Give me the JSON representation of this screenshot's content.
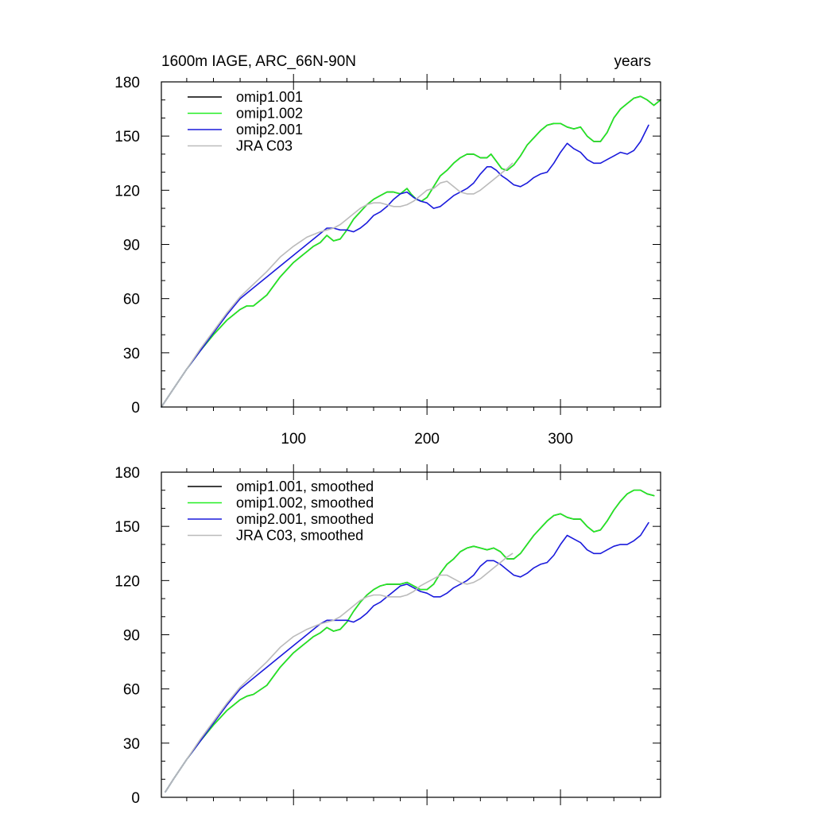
{
  "chart_data": [
    {
      "type": "line",
      "title_left": "1600m IAGE, ARC_66N-90N",
      "title_right": "years",
      "xlabel": "",
      "ylabel": "",
      "xlim": [
        1,
        375
      ],
      "ylim": [
        0,
        180
      ],
      "x_ticks": [
        100,
        200,
        300
      ],
      "x_tick_labels": [
        "100",
        "200",
        "300"
      ],
      "y_ticks": [
        0,
        30,
        60,
        90,
        120,
        150,
        180
      ],
      "y_tick_labels": [
        "0",
        "30",
        "60",
        "90",
        "120",
        "150",
        "180"
      ],
      "grid": false,
      "legend_position": "top-left",
      "series": [
        {
          "name": "omip1.001",
          "color": "#000000",
          "x": [
            1,
            10,
            20,
            30,
            40,
            50,
            60,
            65,
            70,
            80,
            90,
            100,
            110,
            115,
            120,
            125,
            130,
            135,
            140,
            145,
            150,
            155,
            160,
            165,
            170,
            175,
            180,
            185,
            188,
            192,
            196,
            200,
            205,
            210,
            215,
            220,
            225,
            230,
            235,
            240,
            245,
            248,
            252,
            256,
            260,
            265,
            270,
            275,
            280,
            285,
            290,
            295,
            300,
            305,
            310,
            315,
            320,
            325,
            330,
            335,
            340,
            345,
            350,
            355,
            360,
            365,
            370,
            375
          ],
          "values": [
            0,
            10,
            21,
            31,
            40,
            48,
            54,
            56,
            56,
            62,
            72,
            80,
            86,
            89,
            91,
            95,
            92,
            93,
            98,
            104,
            108,
            112,
            115,
            117,
            119,
            119,
            118,
            121,
            118,
            115,
            114,
            116,
            122,
            128,
            131,
            135,
            138,
            140,
            140,
            138,
            138,
            140,
            136,
            132,
            131,
            134,
            139,
            145,
            149,
            153,
            156,
            157,
            157,
            155,
            154,
            155,
            150,
            147,
            147,
            152,
            160,
            165,
            168,
            171,
            172,
            170,
            167,
            170
          ]
        },
        {
          "name": "omip1.002",
          "color": "#22ee22",
          "x": [
            1,
            10,
            20,
            30,
            40,
            50,
            60,
            65,
            70,
            80,
            90,
            100,
            110,
            115,
            120,
            125,
            130,
            135,
            140,
            145,
            150,
            155,
            160,
            165,
            170,
            175,
            180,
            185,
            188,
            192,
            196,
            200,
            205,
            210,
            215,
            220,
            225,
            230,
            235,
            240,
            245,
            248,
            252,
            256,
            260,
            265,
            270,
            275,
            280,
            285,
            290,
            295,
            300,
            305,
            310,
            315,
            320,
            325,
            330,
            335,
            340,
            345,
            350,
            355,
            360,
            365,
            370,
            375
          ],
          "values": [
            0,
            10,
            21,
            31,
            40,
            48,
            54,
            56,
            56,
            62,
            72,
            80,
            86,
            89,
            91,
            95,
            92,
            93,
            98,
            104,
            108,
            112,
            115,
            117,
            119,
            119,
            118,
            121,
            118,
            115,
            114,
            116,
            122,
            128,
            131,
            135,
            138,
            140,
            140,
            138,
            138,
            140,
            136,
            132,
            131,
            134,
            139,
            145,
            149,
            153,
            156,
            157,
            157,
            155,
            154,
            155,
            150,
            147,
            147,
            152,
            160,
            165,
            168,
            171,
            172,
            170,
            167,
            170
          ]
        },
        {
          "name": "omip2.001",
          "color": "#1a1adc",
          "x": [
            1,
            10,
            20,
            30,
            40,
            50,
            60,
            70,
            80,
            90,
            100,
            110,
            120,
            125,
            130,
            135,
            140,
            145,
            150,
            155,
            160,
            165,
            170,
            175,
            180,
            185,
            190,
            195,
            200,
            205,
            210,
            215,
            220,
            225,
            230,
            235,
            240,
            245,
            248,
            252,
            256,
            260,
            265,
            270,
            275,
            280,
            285,
            290,
            295,
            300,
            305,
            310,
            315,
            320,
            325,
            330,
            335,
            340,
            345,
            350,
            355,
            360,
            366
          ],
          "values": [
            0,
            10,
            21,
            31,
            41,
            51,
            60,
            66,
            72,
            78,
            84,
            90,
            96,
            99,
            99,
            98,
            98,
            97,
            99,
            102,
            106,
            108,
            111,
            115,
            118,
            119,
            116,
            114,
            113,
            110,
            111,
            114,
            117,
            119,
            121,
            124,
            129,
            133,
            133,
            131,
            128,
            126,
            123,
            122,
            124,
            127,
            129,
            130,
            135,
            141,
            146,
            143,
            141,
            137,
            135,
            135,
            137,
            139,
            141,
            140,
            142,
            147,
            156
          ]
        },
        {
          "name": "JRA C03",
          "color": "#bbbbbb",
          "x": [
            1,
            10,
            20,
            30,
            40,
            50,
            60,
            70,
            80,
            90,
            100,
            110,
            120,
            125,
            130,
            135,
            140,
            145,
            150,
            155,
            160,
            165,
            170,
            175,
            180,
            185,
            190,
            195,
            200,
            205,
            210,
            215,
            220,
            225,
            230,
            235,
            240,
            245,
            250,
            255,
            260,
            264
          ],
          "values": [
            0,
            10,
            21,
            32,
            42,
            52,
            61,
            68,
            75,
            83,
            89,
            94,
            97,
            98,
            99,
            101,
            104,
            107,
            110,
            112,
            113,
            113,
            112,
            111,
            111,
            112,
            114,
            117,
            120,
            121,
            124,
            125,
            122,
            119,
            118,
            118,
            120,
            123,
            126,
            129,
            132,
            135
          ]
        }
      ]
    },
    {
      "type": "line",
      "title_left": "",
      "title_right": "",
      "xlabel": "",
      "ylabel": "",
      "xlim": [
        1,
        375
      ],
      "ylim": [
        0,
        180
      ],
      "x_ticks": [
        100,
        200,
        300
      ],
      "x_tick_labels": [],
      "y_ticks": [
        0,
        30,
        60,
        90,
        120,
        150,
        180
      ],
      "y_tick_labels": [
        "0",
        "30",
        "60",
        "90",
        "120",
        "150",
        "180"
      ],
      "grid": false,
      "legend_position": "top-left",
      "series": [
        {
          "name": "omip1.001, smoothed",
          "color": "#000000",
          "x": [
            4,
            10,
            20,
            30,
            40,
            50,
            60,
            65,
            70,
            80,
            90,
            100,
            110,
            115,
            120,
            125,
            130,
            135,
            140,
            145,
            150,
            155,
            160,
            165,
            170,
            175,
            180,
            185,
            190,
            195,
            200,
            205,
            210,
            215,
            220,
            225,
            230,
            235,
            240,
            245,
            250,
            255,
            260,
            265,
            270,
            275,
            280,
            285,
            290,
            295,
            300,
            305,
            310,
            315,
            320,
            325,
            330,
            335,
            340,
            345,
            350,
            355,
            360,
            365,
            370
          ],
          "values": [
            3,
            10,
            21,
            31,
            40,
            48,
            54,
            56,
            57,
            62,
            72,
            80,
            86,
            89,
            91,
            94,
            92,
            93,
            97,
            103,
            108,
            112,
            115,
            117,
            118,
            118,
            118,
            119,
            117,
            115,
            115,
            118,
            124,
            129,
            132,
            136,
            138,
            139,
            138,
            137,
            138,
            136,
            132,
            132,
            135,
            140,
            145,
            149,
            153,
            156,
            157,
            155,
            154,
            154,
            150,
            147,
            148,
            153,
            159,
            164,
            168,
            170,
            170,
            168,
            167
          ]
        },
        {
          "name": "omip1.002, smoothed",
          "color": "#22ee22",
          "x": [
            4,
            10,
            20,
            30,
            40,
            50,
            60,
            65,
            70,
            80,
            90,
            100,
            110,
            115,
            120,
            125,
            130,
            135,
            140,
            145,
            150,
            155,
            160,
            165,
            170,
            175,
            180,
            185,
            190,
            195,
            200,
            205,
            210,
            215,
            220,
            225,
            230,
            235,
            240,
            245,
            250,
            255,
            260,
            265,
            270,
            275,
            280,
            285,
            290,
            295,
            300,
            305,
            310,
            315,
            320,
            325,
            330,
            335,
            340,
            345,
            350,
            355,
            360,
            365,
            370
          ],
          "values": [
            3,
            10,
            21,
            31,
            40,
            48,
            54,
            56,
            57,
            62,
            72,
            80,
            86,
            89,
            91,
            94,
            92,
            93,
            97,
            103,
            108,
            112,
            115,
            117,
            118,
            118,
            118,
            119,
            117,
            115,
            115,
            118,
            124,
            129,
            132,
            136,
            138,
            139,
            138,
            137,
            138,
            136,
            132,
            132,
            135,
            140,
            145,
            149,
            153,
            156,
            157,
            155,
            154,
            154,
            150,
            147,
            148,
            153,
            159,
            164,
            168,
            170,
            170,
            168,
            167
          ]
        },
        {
          "name": "omip2.001, smoothed",
          "color": "#1a1adc",
          "x": [
            4,
            10,
            20,
            30,
            40,
            50,
            60,
            70,
            80,
            90,
            100,
            110,
            120,
            125,
            130,
            135,
            140,
            145,
            150,
            155,
            160,
            165,
            170,
            175,
            180,
            185,
            190,
            195,
            200,
            205,
            210,
            215,
            220,
            225,
            230,
            235,
            240,
            245,
            250,
            255,
            260,
            265,
            270,
            275,
            280,
            285,
            290,
            295,
            300,
            305,
            310,
            315,
            320,
            325,
            330,
            335,
            340,
            345,
            350,
            355,
            360,
            366
          ],
          "values": [
            3,
            10,
            21,
            31,
            41,
            51,
            60,
            66,
            72,
            78,
            84,
            90,
            96,
            98,
            98,
            98,
            98,
            97,
            99,
            102,
            106,
            108,
            111,
            114,
            117,
            118,
            116,
            114,
            113,
            111,
            111,
            113,
            116,
            118,
            120,
            123,
            128,
            131,
            131,
            129,
            126,
            123,
            122,
            124,
            127,
            129,
            130,
            134,
            140,
            145,
            143,
            141,
            137,
            135,
            135,
            137,
            139,
            140,
            140,
            142,
            145,
            152
          ]
        },
        {
          "name": "JRA C03, smoothed",
          "color": "#bbbbbb",
          "x": [
            4,
            10,
            20,
            30,
            40,
            50,
            60,
            70,
            80,
            90,
            100,
            110,
            120,
            125,
            130,
            135,
            140,
            145,
            150,
            155,
            160,
            165,
            170,
            175,
            180,
            185,
            190,
            195,
            200,
            205,
            210,
            215,
            220,
            225,
            230,
            235,
            240,
            245,
            250,
            255,
            260,
            264
          ],
          "values": [
            3,
            10,
            21,
            32,
            42,
            52,
            61,
            68,
            75,
            83,
            89,
            93,
            96,
            97,
            98,
            100,
            103,
            106,
            109,
            111,
            112,
            112,
            111,
            111,
            111,
            112,
            114,
            117,
            119,
            121,
            123,
            123,
            121,
            119,
            118,
            119,
            121,
            124,
            127,
            130,
            133,
            135
          ]
        }
      ]
    }
  ]
}
